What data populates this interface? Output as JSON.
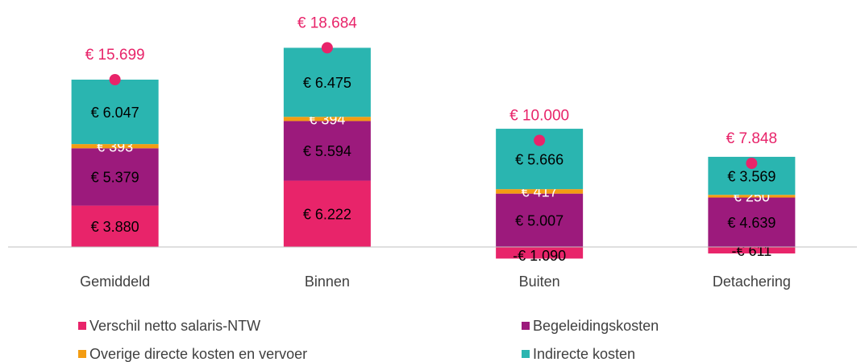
{
  "chart_data": {
    "type": "stacked_bar",
    "categories": [
      "Gemiddeld",
      "Binnen",
      "Buiten",
      "Detachering"
    ],
    "series": [
      {
        "name": "Verschil netto salaris-NTW",
        "color": "#e8246a",
        "label_color": "#000000",
        "values": [
          3880,
          6222,
          -1090,
          -611
        ],
        "value_labels": [
          "€ 3.880",
          "€ 6.222",
          "-€ 1.090",
          "-€ 611"
        ]
      },
      {
        "name": "Begeleidingskosten",
        "color": "#9c1a7c",
        "label_color": "#000000",
        "values": [
          5379,
          5594,
          5007,
          4639
        ],
        "value_labels": [
          "€ 5.379",
          "€ 5.594",
          "€ 5.007",
          "€ 4.639"
        ]
      },
      {
        "name": "Overige directe kosten en vervoer",
        "color": "#f39c12",
        "label_color": "#ffffff",
        "values": [
          393,
          394,
          417,
          250
        ],
        "value_labels": [
          "€ 393",
          "€ 394",
          "€ 417",
          "€ 250"
        ]
      },
      {
        "name": "Indirecte kosten",
        "color": "#2ab5b0",
        "label_color": "#000000",
        "values": [
          6047,
          6475,
          5666,
          3569
        ],
        "value_labels": [
          "€ 6.047",
          "€ 6.475",
          "€ 5.666",
          "€ 3.569"
        ]
      }
    ],
    "totals": {
      "color": "#e8246a",
      "values": [
        15699,
        18684,
        10000,
        7848
      ],
      "value_labels": [
        "€ 15.699",
        "€ 18.684",
        "€ 10.000",
        "€ 7.848"
      ]
    },
    "ylim": [
      -2000,
      20000
    ]
  }
}
